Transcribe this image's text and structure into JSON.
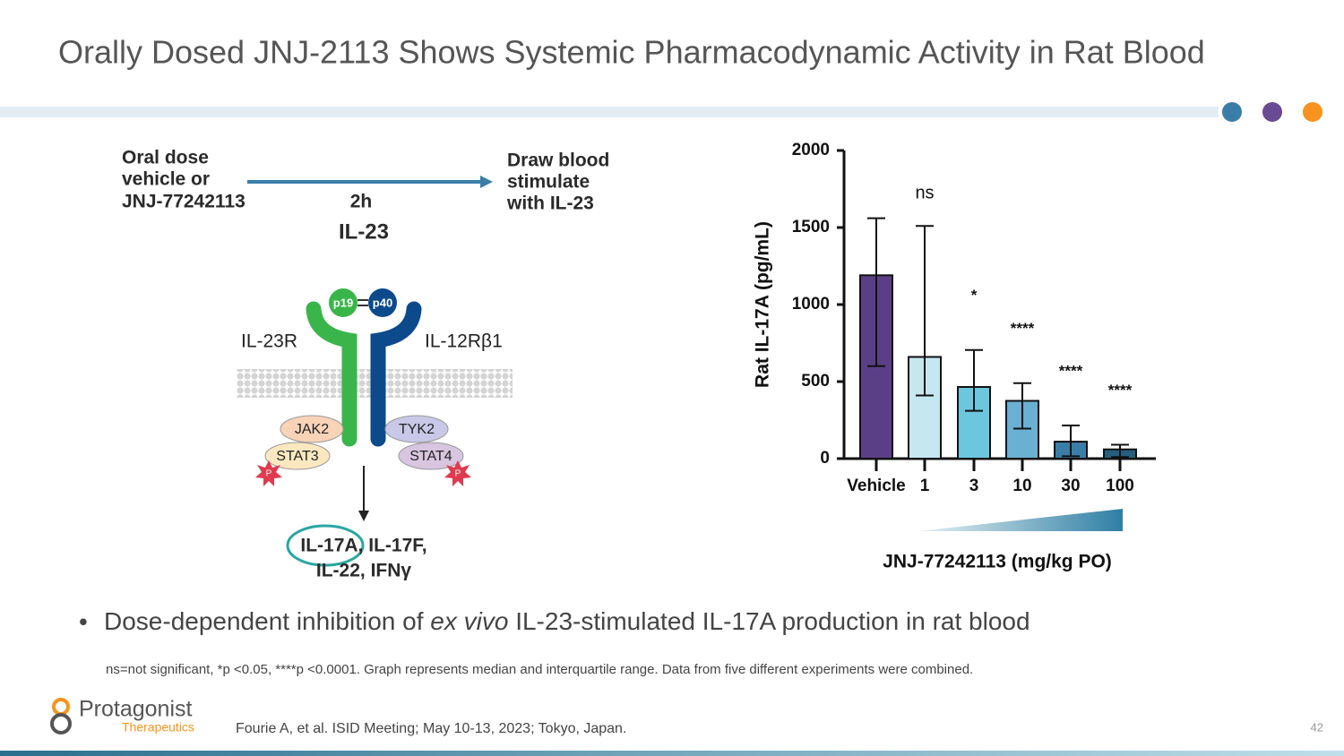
{
  "title": "Orally Dosed JNJ-2113 Shows Systemic Pharmacodynamic Activity in Rat Blood",
  "diagram": {
    "dose_label": [
      "Oral dose",
      "vehicle or",
      "JNJ-77242113"
    ],
    "time": "2h",
    "draw_label": [
      "Draw blood",
      "stimulate",
      "with IL-23"
    ],
    "ligand": "IL-23",
    "p19": "p19",
    "p40": "p40",
    "receptor_left": "IL-23R",
    "receptor_right": "IL-12Rβ1",
    "jak2": "JAK2",
    "tyk2": "TYK2",
    "stat3": "STAT3",
    "stat4": "STAT4",
    "phospho": [
      "P",
      "P"
    ],
    "outputs": [
      "IL-17A, IL-17F,",
      "IL-22, IFNγ"
    ]
  },
  "chart_data": {
    "type": "bar",
    "ylabel": "Rat IL-17A (pg/mL)",
    "xlabel": "JNJ-77242113 (mg/kg PO)",
    "categories": [
      "Vehicle",
      "1",
      "3",
      "10",
      "30",
      "100"
    ],
    "values": [
      1190,
      660,
      465,
      375,
      110,
      60
    ],
    "lower": [
      600,
      410,
      310,
      195,
      15,
      10
    ],
    "upper": [
      1560,
      1510,
      705,
      490,
      215,
      90
    ],
    "significance": [
      null,
      "ns",
      "*",
      "****",
      "****",
      "****"
    ],
    "colors": [
      "#5b3f86",
      "#c5e8f0",
      "#6cc7de",
      "#6ab0d2",
      "#3a7ea8",
      "#245f80"
    ],
    "ylim": [
      0,
      2000
    ],
    "yticks": [
      0,
      500,
      1000,
      1500,
      2000
    ]
  },
  "bullet": [
    "Dose-dependent inhibition of ",
    "ex vivo",
    " IL-23-stimulated IL-17A production in rat blood"
  ],
  "footnote": "ns=not significant, *p <0.05, ****p <0.0001. Graph represents median and interquartile range. Data from five different experiments were combined.",
  "logo": {
    "name": "Protagonist",
    "sub": "Therapeutics"
  },
  "citation": "Fourie A, et al. ISID Meeting; May 10-13, 2023; Tokyo, Japan.",
  "page_number": 42
}
